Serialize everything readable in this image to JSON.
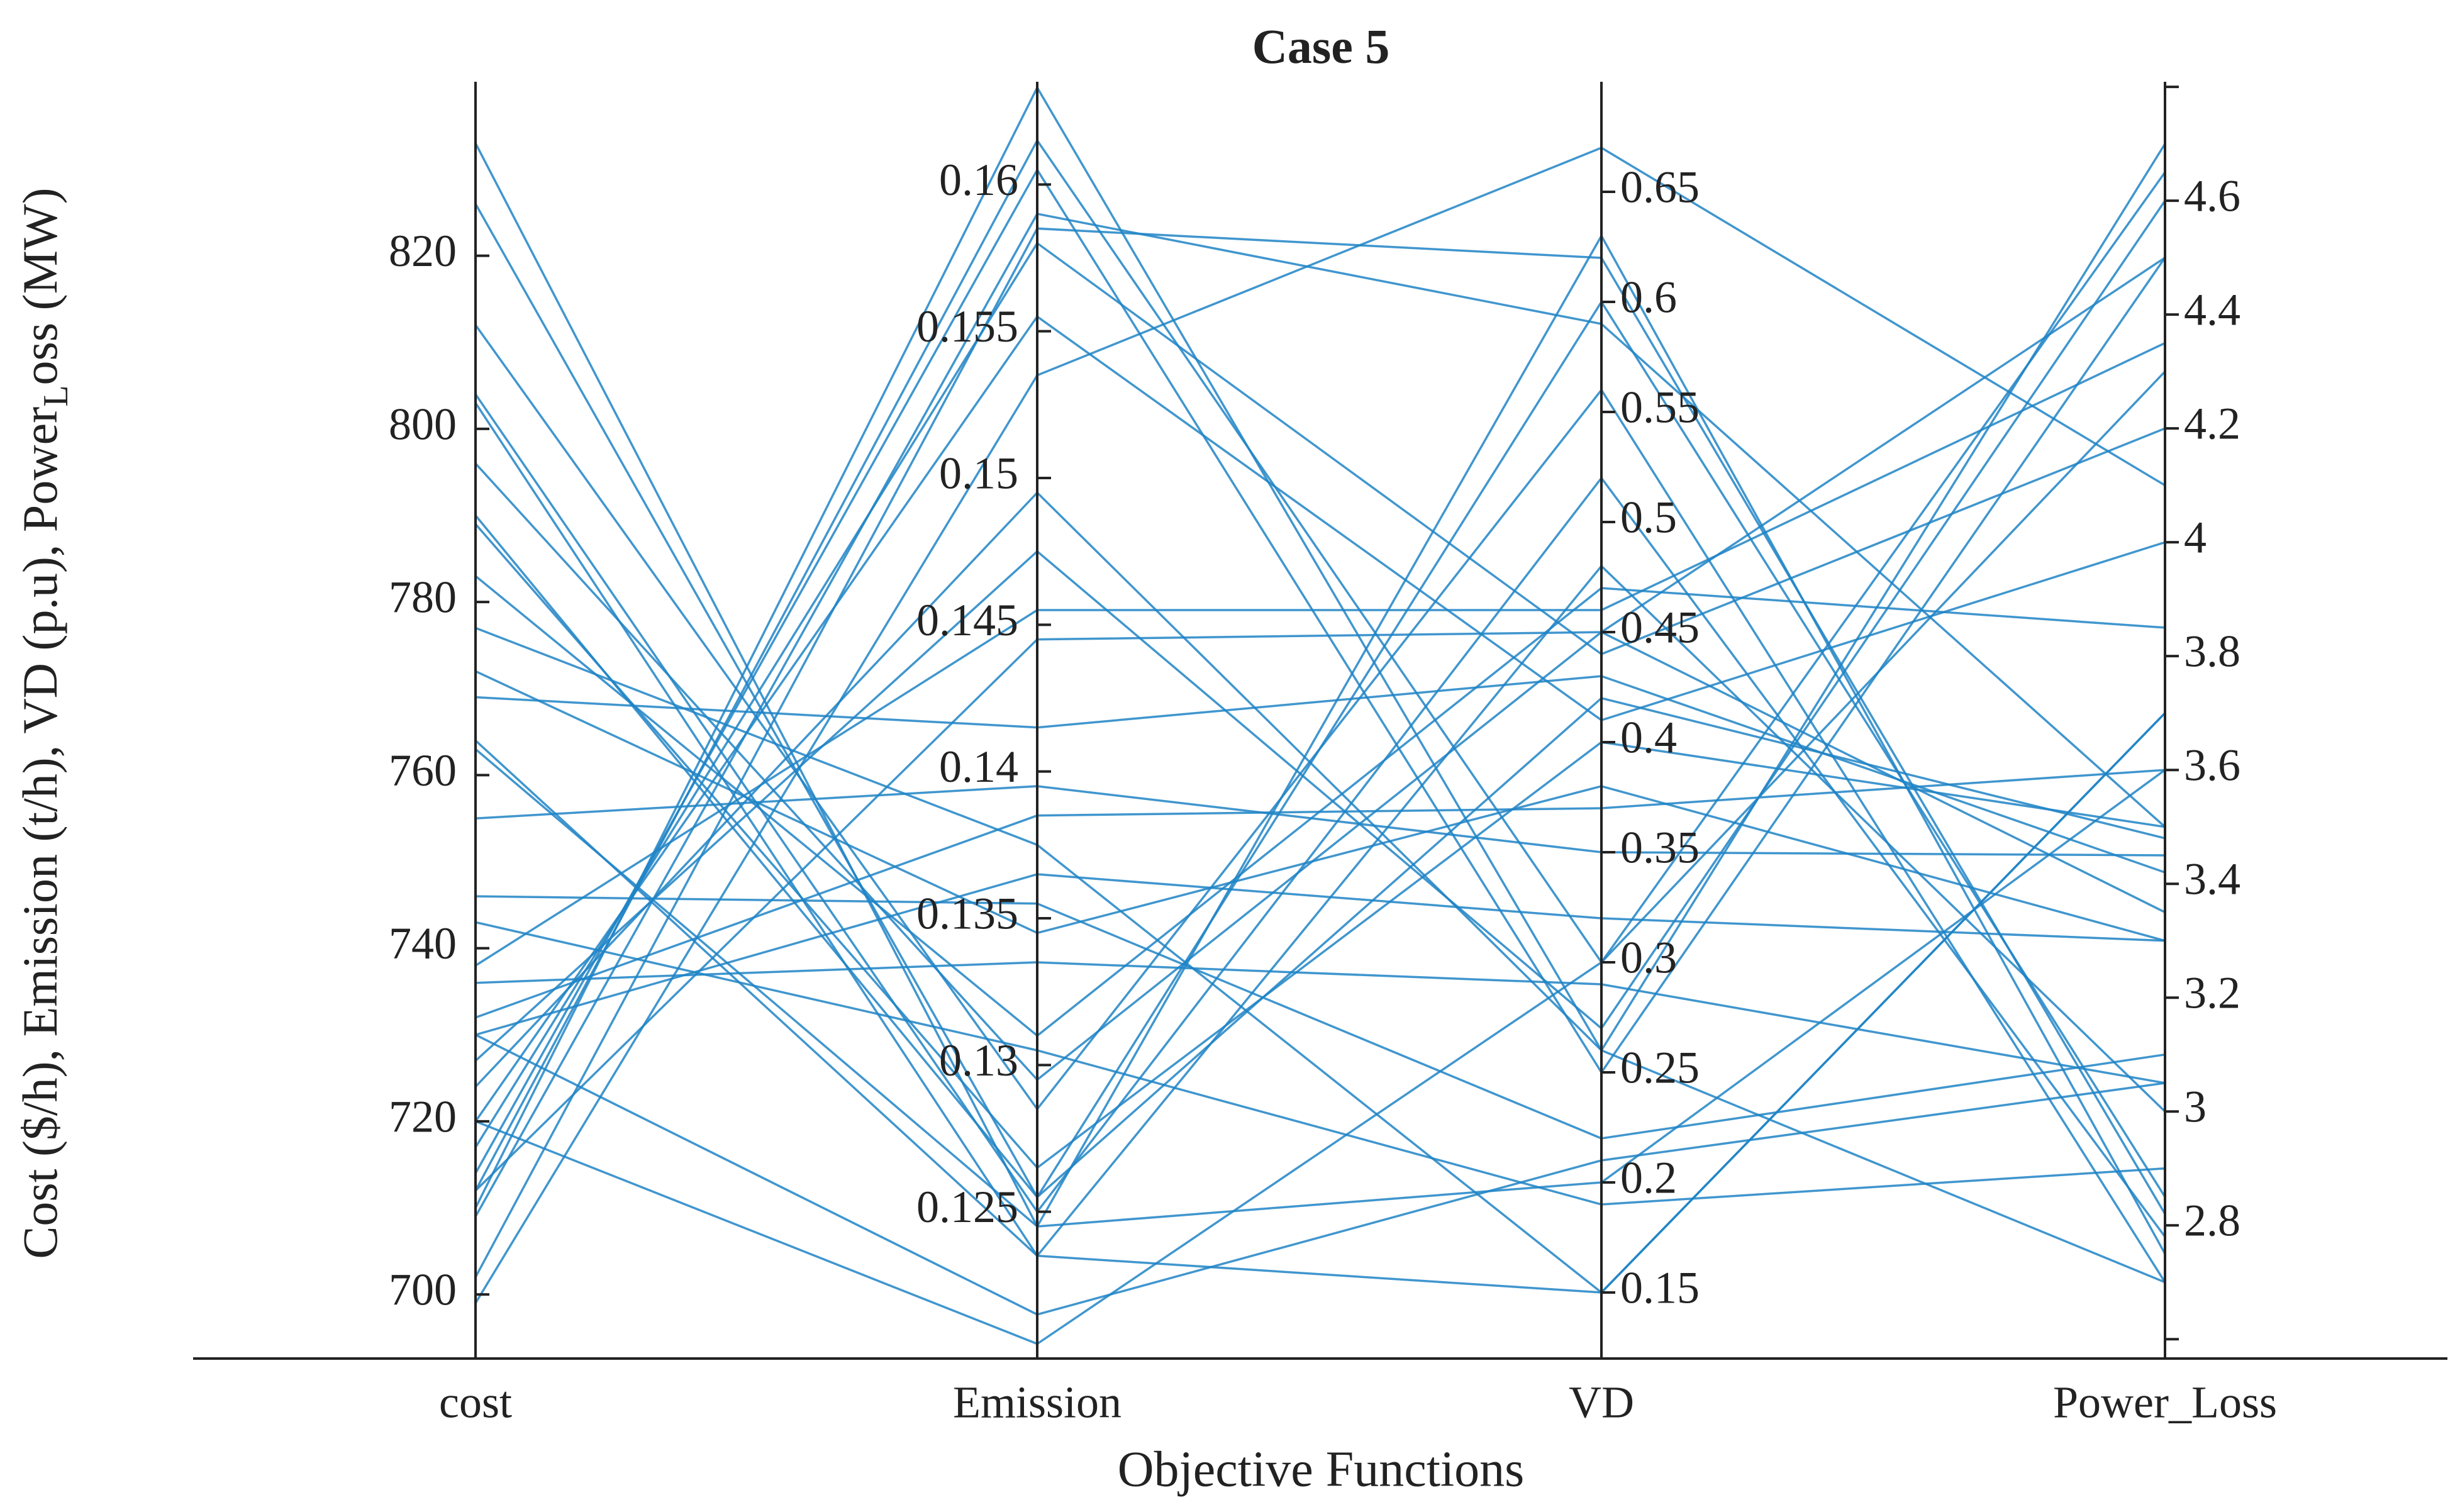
{
  "chart_data": {
    "type": "parallel",
    "title": "Case 5",
    "x_label": "Objective Functions",
    "y_label": [
      "Cost ($/h), Emission (t/h), VD (p.u), Power",
      "L",
      "oss (MW)"
    ],
    "color": "#1f84c6",
    "axes": [
      {
        "name": "cost",
        "ylim": [
          692.6,
          840.1
        ],
        "yticks": [
          700,
          720,
          740,
          760,
          780,
          800,
          820
        ]
      },
      {
        "name": "Emission",
        "ylim": [
          0.12,
          0.1635
        ],
        "yticks": [
          0.125,
          0.13,
          0.135,
          0.14,
          0.145,
          0.15,
          0.155,
          0.16
        ]
      },
      {
        "name": "VD",
        "ylim": [
          0.12,
          0.7
        ],
        "yticks": [
          0.15,
          0.2,
          0.25,
          0.3,
          0.35,
          0.4,
          0.45,
          0.5,
          0.55,
          0.6,
          0.65
        ]
      },
      {
        "name": "Power_Loss",
        "ylim": [
          2.566,
          4.809
        ],
        "yticks": [
          2.8,
          3,
          3.2,
          3.4,
          3.6,
          3.8,
          4,
          4.2,
          4.4,
          4.6
        ],
        "minor_ticks": [
          2.6,
          4.8
        ]
      }
    ],
    "lines": [
      [
        833,
        0.1245,
        0.63,
        2.75
      ],
      [
        826,
        0.1255,
        0.6,
        2.85
      ],
      [
        812,
        0.1285,
        0.56,
        2.7
      ],
      [
        804,
        0.125,
        0.52,
        2.78
      ],
      [
        803,
        0.1235,
        0.48,
        3.0
      ],
      [
        796,
        0.1295,
        0.45,
        3.35
      ],
      [
        790,
        0.1255,
        0.42,
        3.48
      ],
      [
        789,
        0.1265,
        0.4,
        3.5
      ],
      [
        783,
        0.131,
        0.47,
        3.85
      ],
      [
        777,
        0.1375,
        0.15,
        3.7
      ],
      [
        772,
        0.1345,
        0.38,
        3.3
      ],
      [
        769,
        0.1415,
        0.43,
        3.42
      ],
      [
        764,
        0.1235,
        0.15,
        3.7
      ],
      [
        763,
        0.1245,
        0.2,
        3.6
      ],
      [
        755,
        0.1395,
        0.35,
        3.45
      ],
      [
        746,
        0.1355,
        0.22,
        3.1
      ],
      [
        743,
        0.1305,
        0.19,
        2.9
      ],
      [
        738,
        0.1455,
        0.46,
        4.35
      ],
      [
        736,
        0.1335,
        0.29,
        3.05
      ],
      [
        732,
        0.1385,
        0.37,
        3.6
      ],
      [
        730,
        0.1365,
        0.32,
        3.3
      ],
      [
        727,
        0.1475,
        0.27,
        4.6
      ],
      [
        724,
        0.1495,
        0.26,
        4.7
      ],
      [
        720,
        0.1555,
        0.41,
        4.0
      ],
      [
        717,
        0.158,
        0.44,
        4.2
      ],
      [
        714,
        0.1605,
        0.25,
        4.5
      ],
      [
        712,
        0.1615,
        0.3,
        4.65
      ],
      [
        710,
        0.1633,
        0.26,
        2.7
      ],
      [
        709,
        0.159,
        0.59,
        3.5
      ],
      [
        702,
        0.1585,
        0.62,
        2.82
      ],
      [
        699,
        0.1535,
        0.67,
        4.1
      ],
      [
        720,
        0.1205,
        0.3,
        4.3
      ],
      [
        712,
        0.1445,
        0.45,
        4.5
      ],
      [
        730,
        0.1215,
        0.21,
        3.05
      ]
    ]
  }
}
